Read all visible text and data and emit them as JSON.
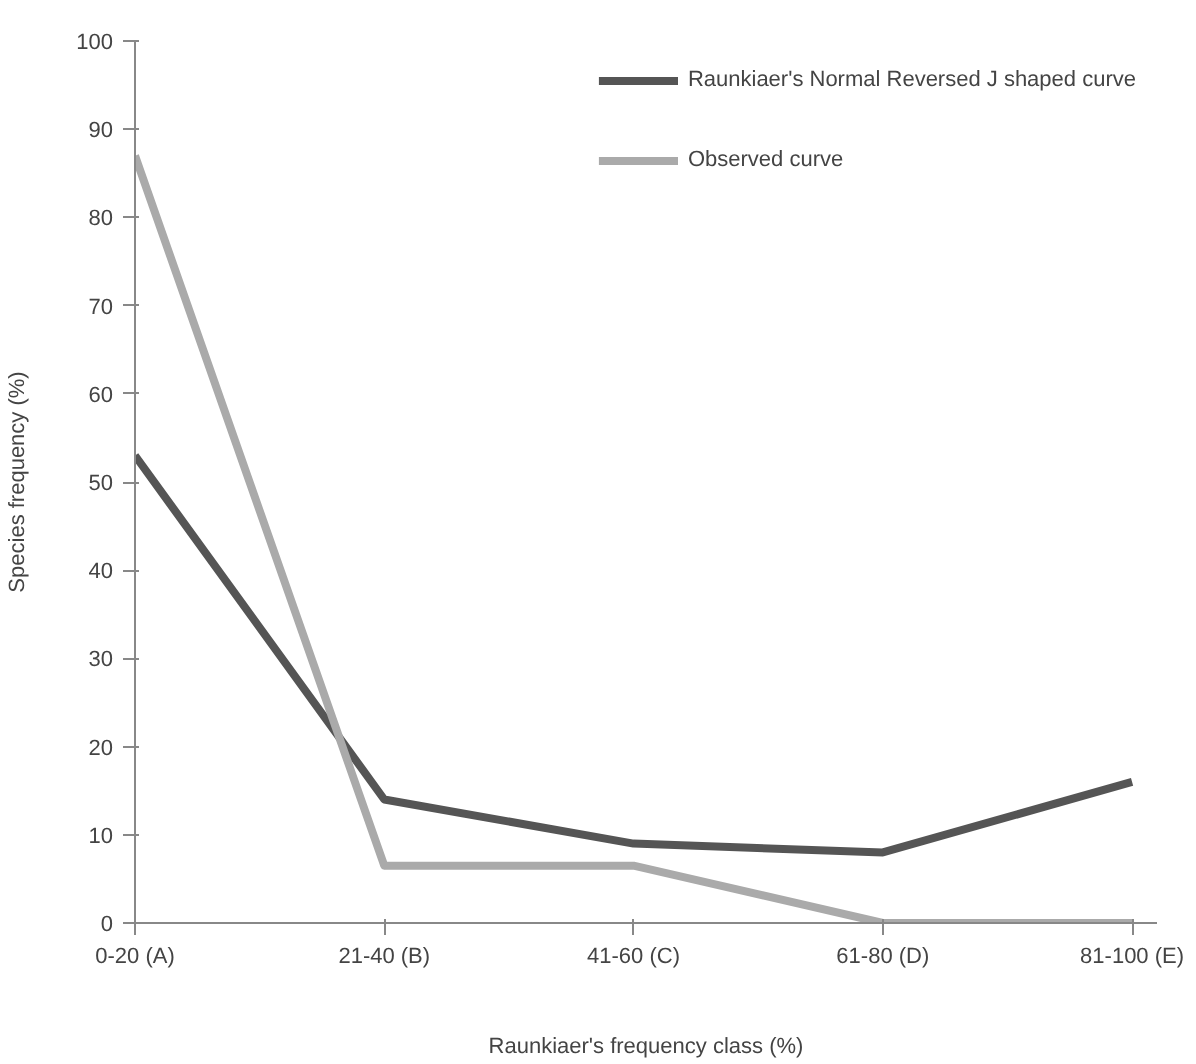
{
  "chart_data": {
    "type": "line",
    "xlabel": "Raunkiaer's frequency class (%)",
    "ylabel": "Species frequency (%)",
    "categories": [
      "0-20 (A)",
      "21-40 (B)",
      "41-60 (C)",
      "61-80 (D)",
      "81-100 (E)"
    ],
    "series": [
      {
        "name": "Raunkiaer's Normal Reversed J shaped curve",
        "color": "#555555",
        "values": [
          53,
          14,
          9,
          8,
          16
        ]
      },
      {
        "name": "Observed curve",
        "color": "#aaaaaa",
        "values": [
          87,
          6.5,
          6.5,
          0,
          0
        ]
      }
    ],
    "ylim": [
      0,
      100
    ],
    "yticks": [
      0,
      10,
      20,
      30,
      40,
      50,
      60,
      70,
      80,
      90,
      100
    ],
    "grid": false,
    "legend": "top right",
    "marker": "none",
    "line_style": "solid"
  }
}
